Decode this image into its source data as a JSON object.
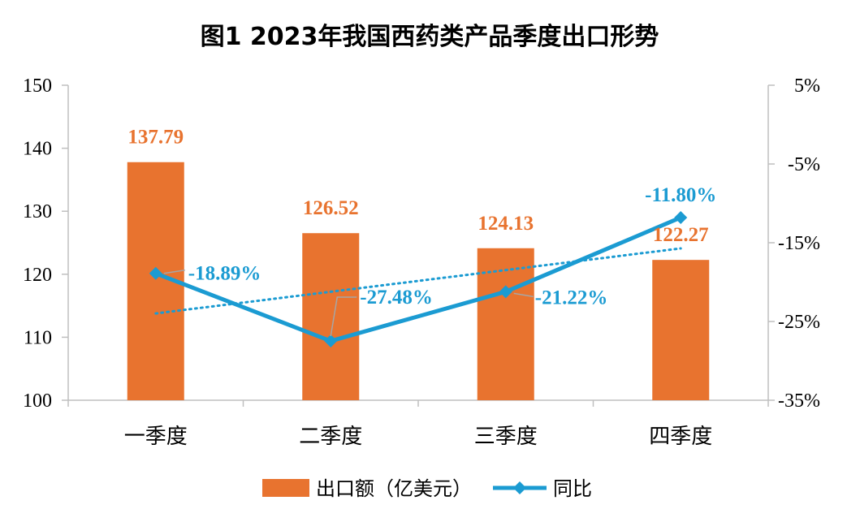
{
  "chart_data": {
    "type": "bar",
    "title": "图1  2023年我国西药类产品季度出口形势",
    "categories": [
      "一季度",
      "二季度",
      "三季度",
      "四季度"
    ],
    "series": [
      {
        "name": "出口额（亿美元）",
        "type": "bar",
        "axis": "left",
        "values": [
          137.79,
          126.52,
          124.13,
          122.27
        ],
        "labels": [
          "137.79",
          "126.52",
          "124.13",
          "122.27"
        ]
      },
      {
        "name": "同比",
        "type": "line",
        "axis": "right",
        "values": [
          -18.89,
          -27.48,
          -21.22,
          -11.8
        ],
        "labels": [
          "-18.89%",
          "-27.48%",
          "-21.22%",
          "-11.80%"
        ]
      }
    ],
    "y_left": {
      "ylim": [
        100,
        150
      ],
      "ticks": [
        "100",
        "110",
        "120",
        "130",
        "140",
        "150"
      ]
    },
    "y_right": {
      "ylim": [
        -35,
        5
      ],
      "ticks": [
        "5%",
        "-5%",
        "-15%",
        "-25%",
        "-35%"
      ],
      "tick_values": [
        5,
        -5,
        -15,
        -25,
        -35
      ]
    },
    "trendline": {
      "series": "同比",
      "style": "dotted",
      "kind": "linear"
    },
    "grid": false,
    "legend_position": "bottom",
    "colors": {
      "bar": "#E8732F",
      "line": "#1B9BD2",
      "axis": "#BFBFBF"
    }
  }
}
